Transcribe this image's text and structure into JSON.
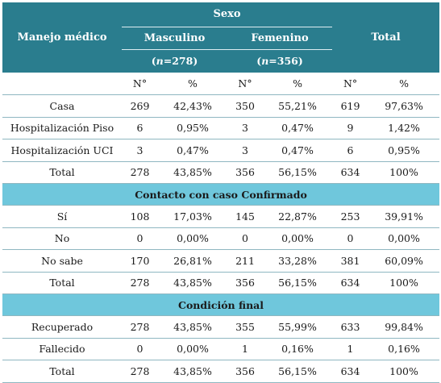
{
  "header": {
    "col_label": "Manejo médico",
    "group": "Sexo",
    "male": "Masculino",
    "female": "Femenino",
    "total": "Total",
    "male_n": "(n=278)",
    "female_n": "(n=356)"
  },
  "subheader": [
    "N°",
    "%",
    "N°",
    "%",
    "N°",
    "%"
  ],
  "sections": [
    {
      "title": "",
      "rows": [
        {
          "label": "Casa",
          "cells": [
            "269",
            "42,43%",
            "350",
            "55,21%",
            "619",
            "97,63%"
          ]
        },
        {
          "label": "Hospitalización Piso",
          "cells": [
            "6",
            "0,95%",
            "3",
            "0,47%",
            "9",
            "1,42%"
          ]
        },
        {
          "label": "Hospitalización UCI",
          "cells": [
            "3",
            "0,47%",
            "3",
            "0,47%",
            "6",
            "0,95%"
          ]
        },
        {
          "label": "Total",
          "cells": [
            "278",
            "43,85%",
            "356",
            "56,15%",
            "634",
            "100%"
          ]
        }
      ]
    },
    {
      "title": "Contacto con caso Confirmado",
      "rows": [
        {
          "label": "Sí",
          "cells": [
            "108",
            "17,03%",
            "145",
            "22,87%",
            "253",
            "39,91%"
          ]
        },
        {
          "label": "No",
          "cells": [
            "0",
            "0,00%",
            "0",
            "0,00%",
            "0",
            "0,00%"
          ]
        },
        {
          "label": "No sabe",
          "cells": [
            "170",
            "26,81%",
            "211",
            "33,28%",
            "381",
            "60,09%"
          ]
        },
        {
          "label": "Total",
          "cells": [
            "278",
            "43,85%",
            "356",
            "56,15%",
            "634",
            "100%"
          ]
        }
      ]
    },
    {
      "title": "Condición final",
      "rows": [
        {
          "label": "Recuperado",
          "cells": [
            "278",
            "43,85%",
            "355",
            "55,99%",
            "633",
            "99,84%"
          ]
        },
        {
          "label": "Fallecido",
          "cells": [
            "0",
            "0,00%",
            "1",
            "0,16%",
            "1",
            "0,16%"
          ]
        },
        {
          "label": "Total",
          "cells": [
            "278",
            "43,85%",
            "356",
            "56,15%",
            "634",
            "100%"
          ]
        }
      ]
    }
  ]
}
